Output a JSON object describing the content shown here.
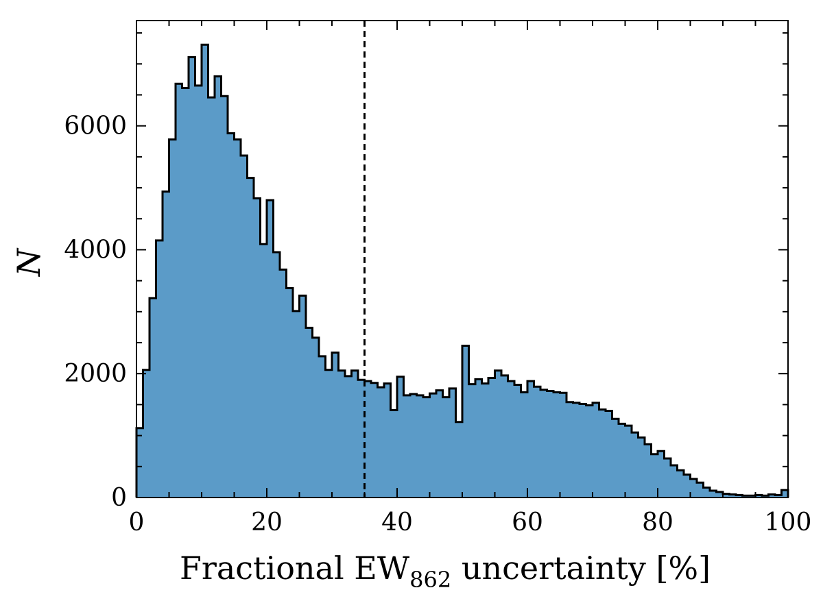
{
  "chart_data": {
    "type": "bar",
    "title": "",
    "xlabel_main": "Fractional EW",
    "xlabel_sub": "862",
    "xlabel_tail": " uncertainty [%]",
    "ylabel": "N",
    "xlim": [
      0,
      100
    ],
    "ylim": [
      0,
      7700
    ],
    "bin_width": 1,
    "x_ticks": [
      0,
      20,
      40,
      60,
      80,
      100
    ],
    "y_ticks": [
      0,
      2000,
      4000,
      6000
    ],
    "x_tick_labels": [
      "0",
      "20",
      "40",
      "60",
      "80",
      "100"
    ],
    "y_tick_labels": [
      "0",
      "2000",
      "4000",
      "6000"
    ],
    "fill_color": "#5b9bc8",
    "edge_color": "#000000",
    "reference_line": {
      "x": 35,
      "style": "dashed",
      "color": "#000000"
    },
    "bin_edges_start": 0,
    "values": [
      1120,
      2060,
      3220,
      4150,
      4940,
      5780,
      6680,
      6610,
      7110,
      6650,
      7310,
      6460,
      6800,
      6480,
      5880,
      5780,
      5520,
      5160,
      4830,
      4090,
      4800,
      3960,
      3680,
      3380,
      3010,
      3260,
      2740,
      2580,
      2280,
      2060,
      2340,
      2050,
      1960,
      2050,
      1900,
      1880,
      1850,
      1780,
      1840,
      1410,
      1950,
      1650,
      1670,
      1650,
      1620,
      1680,
      1730,
      1620,
      1760,
      1220,
      2450,
      1830,
      1910,
      1840,
      1930,
      2050,
      1970,
      1880,
      1820,
      1700,
      1880,
      1790,
      1740,
      1720,
      1700,
      1690,
      1540,
      1530,
      1510,
      1490,
      1530,
      1420,
      1400,
      1270,
      1190,
      1160,
      1050,
      970,
      860,
      700,
      750,
      630,
      520,
      440,
      370,
      300,
      240,
      160,
      110,
      90,
      60,
      50,
      40,
      30,
      30,
      40,
      30,
      50,
      40,
      120
    ]
  }
}
